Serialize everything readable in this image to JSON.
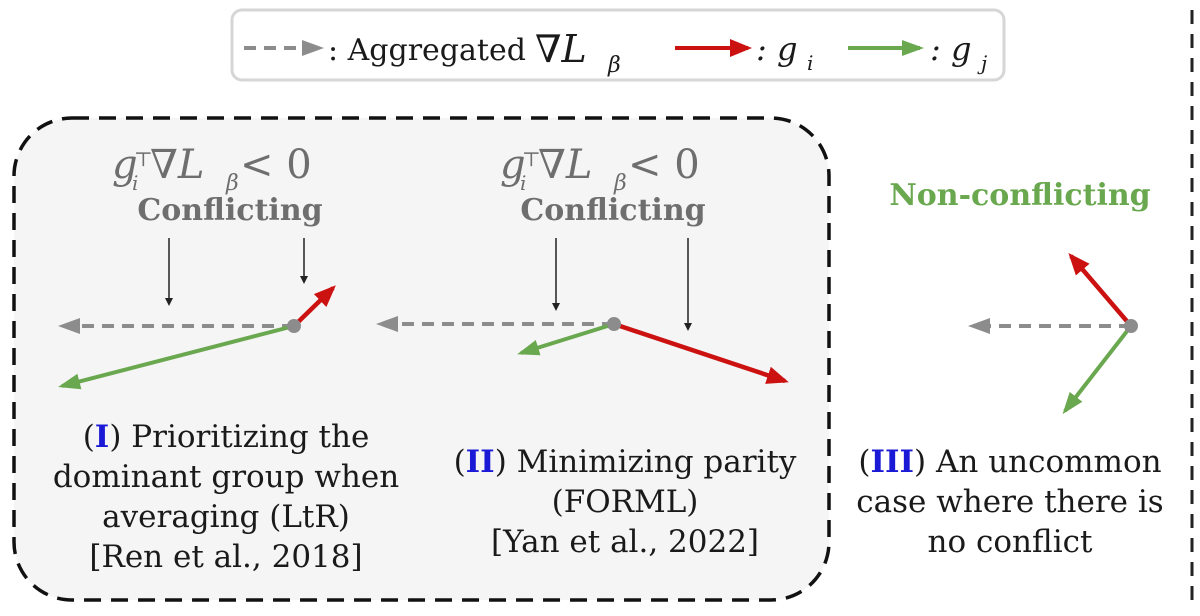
{
  "legend": {
    "aggregated_label": ": Aggregated",
    "aggregated_symbol": "∇L",
    "aggregated_sub": "β",
    "gi_label": ": g",
    "gi_sub": "i",
    "gj_label": ": g",
    "gj_sub": "j"
  },
  "panels": [
    {
      "id": "I",
      "formula": {
        "g": "g",
        "sub": "i",
        "sup": "⊤",
        "rest": "∇L",
        "rest_sub": "β",
        "ineq": " < 0"
      },
      "tag": "Conflicting",
      "caption_lines": [
        "Prioritizing the",
        "dominant group when",
        "averaging (LtR)",
        "[Ren et al., 2018]"
      ]
    },
    {
      "id": "II",
      "formula": {
        "g": "g",
        "sub": "i",
        "sup": "⊤",
        "rest": "∇L",
        "rest_sub": "β",
        "ineq": " < 0"
      },
      "tag": "Conflicting",
      "caption_lines": [
        "Minimizing parity",
        "(FORML)",
        "[Yan et al., 2022]"
      ]
    },
    {
      "id": "III",
      "tag": "Non-conflicting",
      "caption_lines": [
        "An uncommon",
        "case where there is",
        "no conflict"
      ]
    }
  ],
  "colors": {
    "aggregated": "#8c8c8c",
    "gi": "#cc1111",
    "gj": "#6aa84f",
    "roman_numeral": "#1a1ad6",
    "conflicting": "#6e6e6e",
    "box_fill": "#f5f5f5"
  }
}
